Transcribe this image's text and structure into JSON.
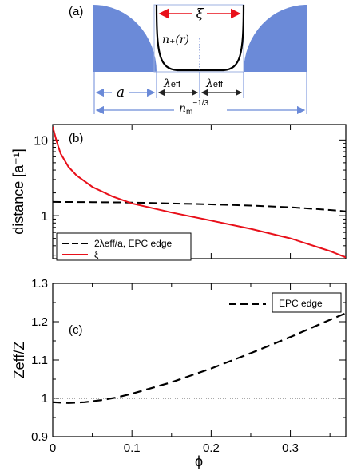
{
  "colors": {
    "blue": "#6b8ad8",
    "red": "#e8101a",
    "black": "#000000",
    "dotted": "#555555"
  },
  "panel_a": {
    "label": "(a)",
    "xi": "ξ",
    "density": "n₊(r)",
    "a": "a",
    "lambda_left": "λ",
    "lambda_left_sub": "eff",
    "lambda_right": "λ",
    "lambda_right_sub": "eff",
    "spacing": "n",
    "spacing_sub": "m",
    "spacing_sup": "−1/3"
  },
  "chart_data": [
    {
      "type": "line",
      "panel": "(b)",
      "ylabel": "distance [a⁻¹]",
      "yscale": "log",
      "xlim": [
        0,
        0.37
      ],
      "ylim": [
        0.27,
        16
      ],
      "y_ticks": [
        1,
        10
      ],
      "y_tick_labels": [
        "1",
        "10"
      ],
      "x_ticks": [
        0,
        0.1,
        0.2,
        0.3
      ],
      "legend": "bottom-left",
      "series": [
        {
          "name": "2λeff/a, EPC edge",
          "style": "dashed",
          "color": "#000000",
          "x": [
            0.0,
            0.05,
            0.1,
            0.15,
            0.2,
            0.25,
            0.3,
            0.35,
            0.37
          ],
          "y": [
            1.52,
            1.51,
            1.49,
            1.45,
            1.41,
            1.36,
            1.29,
            1.19,
            1.14
          ]
        },
        {
          "name": "ξ",
          "color": "#e8101a",
          "x": [
            0.0,
            0.005,
            0.01,
            0.02,
            0.03,
            0.05,
            0.075,
            0.1,
            0.15,
            0.2,
            0.25,
            0.3,
            0.35,
            0.37
          ],
          "y": [
            15.0,
            9.5,
            6.6,
            4.4,
            3.4,
            2.4,
            1.8,
            1.45,
            1.1,
            0.86,
            0.67,
            0.5,
            0.34,
            0.28
          ]
        }
      ]
    },
    {
      "type": "line",
      "panel": "(c)",
      "xlabel": "ϕ",
      "ylabel": "Zeff/Z",
      "xlim": [
        0,
        0.37
      ],
      "ylim": [
        0.9,
        1.3
      ],
      "x_ticks": [
        0,
        0.1,
        0.2,
        0.3
      ],
      "x_tick_labels": [
        "0",
        "0.1",
        "0.2",
        "0.3"
      ],
      "y_ticks": [
        0.9,
        1.0,
        1.1,
        1.2,
        1.3
      ],
      "y_tick_labels": [
        "0.9",
        "1",
        "1.1",
        "1.2",
        "1.3"
      ],
      "legend": "top-right",
      "reference_line": 1.0,
      "series": [
        {
          "name": "EPC edge",
          "style": "dashed",
          "color": "#000000",
          "x": [
            0.0,
            0.02,
            0.04,
            0.06,
            0.08,
            0.1,
            0.15,
            0.2,
            0.25,
            0.3,
            0.35,
            0.37
          ],
          "y": [
            0.99,
            0.988,
            0.99,
            0.995,
            1.002,
            1.012,
            1.042,
            1.078,
            1.118,
            1.16,
            1.205,
            1.222
          ]
        }
      ]
    }
  ]
}
